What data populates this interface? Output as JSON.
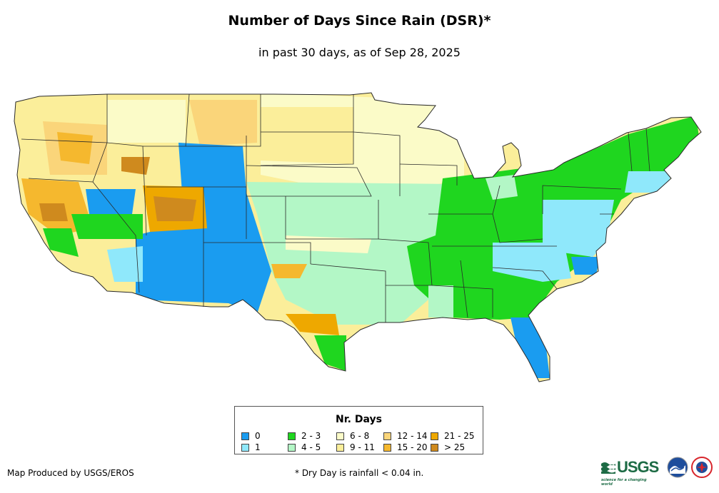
{
  "title": "Number of Days Since Rain (DSR)*",
  "subtitle": "in past 30 days, as of Sep 28, 2025",
  "legend": {
    "title": "Nr. Days",
    "items": [
      {
        "label": "0",
        "color": "#1a9cf0"
      },
      {
        "label": "1",
        "color": "#8fe8fb"
      },
      {
        "label": "2 - 3",
        "color": "#1fd61f"
      },
      {
        "label": "4 - 5",
        "color": "#b3f7c6"
      },
      {
        "label": "6 - 8",
        "color": "#fbfbc8"
      },
      {
        "label": "9 - 11",
        "color": "#fbee9a"
      },
      {
        "label": "12 - 14",
        "color": "#fad57a"
      },
      {
        "label": "15 - 20",
        "color": "#f5b82e"
      },
      {
        "label": "21 - 25",
        "color": "#eea800"
      },
      {
        "label": "> 25",
        "color": "#cf8a1e"
      }
    ]
  },
  "footer": {
    "credit": "Map Produced by USGS/EROS",
    "note": "* Dry Day is rainfall < 0.04 in."
  },
  "logos": {
    "usgs_text": "USGS",
    "usgs_tagline": "science for a changing world",
    "noaa_text": "NOAA"
  }
}
